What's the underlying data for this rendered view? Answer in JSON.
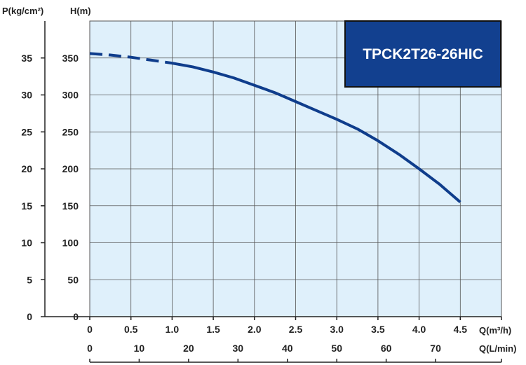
{
  "colors": {
    "plot_background": "#dff0fb",
    "grid": "#555555",
    "curve": "#0f3d8c",
    "badge_fill": "#12408f",
    "axis": "#222222"
  },
  "chart_data": {
    "type": "line",
    "badge_text": "TPCK2T26-26HIC",
    "series": [
      {
        "dashed_until_x": 1.0,
        "x": [
          0,
          0.25,
          0.5,
          0.75,
          1.0,
          1.25,
          1.5,
          1.75,
          2.0,
          2.25,
          2.5,
          2.75,
          3.0,
          3.25,
          3.5,
          3.75,
          4.0,
          4.25,
          4.5
        ],
        "y": [
          356,
          354,
          351,
          347,
          343,
          338,
          331,
          323,
          313,
          303,
          291,
          279,
          267,
          254,
          238,
          220,
          200,
          179,
          155
        ]
      }
    ],
    "x_axis": {
      "label": "Q(m³/h)",
      "range": [
        0,
        5
      ],
      "tick_values": [
        0,
        0.5,
        1.0,
        1.5,
        2.0,
        2.5,
        3.0,
        3.5,
        4.0,
        4.5
      ],
      "tick_labels": [
        "0",
        "0.5",
        "1.0",
        "1.5",
        "2.0",
        "2.5",
        "3.0",
        "3.5",
        "4.0",
        "4.5"
      ]
    },
    "x2_axis": {
      "label": "Q(L/min)",
      "tick_values": [
        0,
        10,
        20,
        30,
        40,
        50,
        60,
        70
      ],
      "tick_labels": [
        "0",
        "10",
        "20",
        "30",
        "40",
        "50",
        "60",
        "70"
      ]
    },
    "y_axis": {
      "label": "H(m)",
      "range": [
        0,
        400
      ],
      "tick_values": [
        0,
        50,
        100,
        150,
        200,
        250,
        300,
        350
      ],
      "tick_labels": [
        "0",
        "50",
        "100",
        "150",
        "200",
        "250",
        "300",
        "350"
      ]
    },
    "y2_axis": {
      "label": "P(kg/cm²)",
      "tick_values": [
        0,
        5,
        10,
        15,
        20,
        25,
        30,
        35
      ],
      "tick_labels": [
        "0",
        "5",
        "10",
        "15",
        "20",
        "25",
        "30",
        "35"
      ]
    },
    "grid": true
  }
}
